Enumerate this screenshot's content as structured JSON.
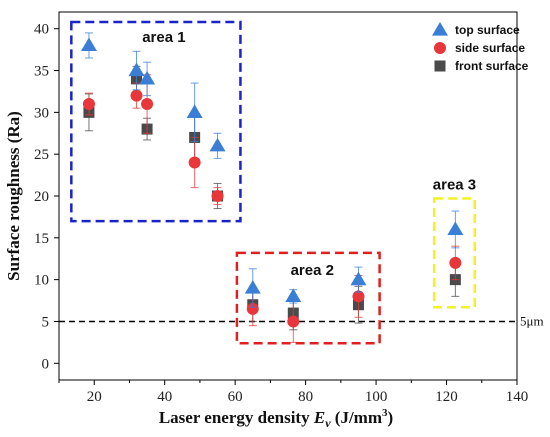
{
  "chart_data": {
    "type": "scatter",
    "title": "",
    "xlabel_main": "Laser energy density ",
    "xlabel_var": "E",
    "xlabel_sub": "v",
    "xlabel_unit_pre": " (J/mm",
    "xlabel_unit_exp": "3",
    "xlabel_unit_post": ")",
    "ylabel": "Surface roughness (Ra)",
    "xlim": [
      10,
      140
    ],
    "ylim": [
      -2,
      42
    ],
    "xticks": [
      20,
      40,
      60,
      80,
      100,
      120,
      140
    ],
    "yticks": [
      0,
      5,
      10,
      15,
      20,
      25,
      30,
      35,
      40
    ],
    "legend_position": "top-right",
    "series": [
      {
        "name": "top surface",
        "marker": "triangle",
        "color": "#3a7fd5",
        "x": [
          18.5,
          32,
          35,
          48.5,
          55,
          65,
          76.5,
          95,
          122.5
        ],
        "y": [
          38,
          35,
          34,
          30,
          26,
          9,
          8,
          10,
          16
        ],
        "err": [
          1.5,
          2.3,
          2.0,
          3.5,
          1.5,
          2.3,
          0.8,
          1.5,
          2.2
        ]
      },
      {
        "name": "side surface",
        "marker": "circle",
        "color": "#e8363a",
        "x": [
          18.5,
          32,
          35,
          48.5,
          55,
          65,
          76.5,
          95,
          122.5
        ],
        "y": [
          31,
          32,
          31,
          24,
          20,
          6.5,
          5,
          8,
          12
        ],
        "err": [
          1.3,
          1.5,
          3.5,
          3.0,
          1.0,
          2.0,
          2.5,
          2.5,
          2.0
        ]
      },
      {
        "name": "front surface",
        "marker": "square",
        "color": "#4a4a4a",
        "x": [
          18.5,
          32,
          35,
          48.5,
          55,
          65,
          76.5,
          95,
          122.5
        ],
        "y": [
          30,
          34,
          28,
          27,
          20,
          7,
          6,
          7,
          10
        ],
        "err": [
          2.2,
          1.5,
          1.3,
          3.0,
          1.5,
          2.0,
          2.0,
          2.2,
          2.0
        ]
      }
    ],
    "reference_line": {
      "y": 5,
      "label": "5μm",
      "color": "#000000"
    },
    "areas": [
      {
        "label": "area 1",
        "color": "#1a23c9",
        "x": [
          13.5,
          61.5
        ],
        "y": [
          17,
          40.8
        ]
      },
      {
        "label": "area 2",
        "color": "#e02020",
        "x": [
          60.5,
          101
        ],
        "y": [
          2.4,
          13.2
        ]
      },
      {
        "label": "area 3",
        "color": "#f2f226",
        "x": [
          116.5,
          128
        ],
        "y": [
          6.7,
          19.7
        ]
      }
    ]
  }
}
